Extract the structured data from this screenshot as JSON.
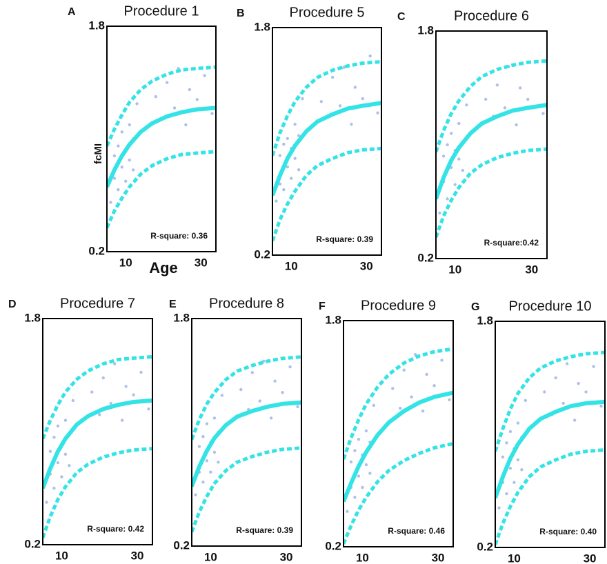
{
  "chart_data": [
    {
      "type": "scatter",
      "panel": "A",
      "title": "Procedure 1",
      "annotation": "R-square: 0.36",
      "ylabel": "fcMI",
      "xlabel": "Age",
      "xlim": [
        5,
        34
      ],
      "ylim": [
        0.2,
        1.8
      ],
      "xticks": [
        10,
        30
      ],
      "yticks": [
        0.2,
        1.8
      ],
      "point_color": "#adc0e8",
      "points": {
        "x": [
          6,
          7,
          7,
          8,
          8,
          9,
          9,
          10,
          10,
          11,
          11,
          12,
          12,
          13,
          18,
          20,
          21,
          23,
          24,
          26,
          27,
          29,
          31,
          33
        ],
        "y": [
          0.55,
          0.72,
          0.88,
          0.64,
          0.95,
          0.8,
          1.05,
          0.7,
          0.92,
          0.85,
          1.1,
          0.78,
          1.0,
          1.25,
          1.3,
          1.15,
          1.4,
          1.22,
          1.5,
          1.1,
          1.35,
          1.28,
          1.45,
          1.18
        ]
      },
      "curves": [
        {
          "style": "solid",
          "color": "#33e3e6",
          "x": [
            5,
            7,
            9,
            11,
            14,
            17,
            21,
            25,
            29,
            34
          ],
          "values": [
            0.66,
            0.78,
            0.88,
            0.96,
            1.05,
            1.11,
            1.16,
            1.19,
            1.21,
            1.22
          ]
        },
        {
          "style": "dashed",
          "color": "#33e3e6",
          "x": [
            5,
            7,
            9,
            11,
            14,
            17,
            21,
            25,
            29,
            34
          ],
          "values": [
            0.95,
            1.07,
            1.17,
            1.26,
            1.35,
            1.41,
            1.46,
            1.49,
            1.5,
            1.51
          ]
        },
        {
          "style": "dashed",
          "color": "#33e3e6",
          "x": [
            5,
            7,
            9,
            11,
            14,
            17,
            21,
            25,
            29,
            34
          ],
          "values": [
            0.37,
            0.49,
            0.58,
            0.66,
            0.75,
            0.81,
            0.86,
            0.89,
            0.9,
            0.91
          ]
        }
      ]
    },
    {
      "type": "scatter",
      "panel": "B",
      "title": "Procedure 5",
      "annotation": "R-square: 0.39",
      "xlim": [
        5,
        34
      ],
      "ylim": [
        0.2,
        1.8
      ],
      "xticks": [
        10,
        30
      ],
      "yticks": [
        0.2,
        1.8
      ],
      "point_color": "#adc0e8",
      "points": {
        "x": [
          6,
          7,
          7,
          8,
          8,
          9,
          9,
          10,
          10,
          11,
          11,
          12,
          12,
          13,
          18,
          20,
          21,
          23,
          24,
          26,
          27,
          29,
          31,
          33
        ],
        "y": [
          0.58,
          0.7,
          0.9,
          0.66,
          0.98,
          0.82,
          1.02,
          0.74,
          0.95,
          0.88,
          1.12,
          0.8,
          1.04,
          1.3,
          1.28,
          1.18,
          1.45,
          1.25,
          1.52,
          1.12,
          1.38,
          1.3,
          1.6,
          1.2
        ]
      },
      "curves": [
        {
          "style": "solid",
          "color": "#33e3e6",
          "x": [
            5,
            7,
            9,
            11,
            14,
            17,
            21,
            25,
            29,
            34
          ],
          "values": [
            0.62,
            0.76,
            0.88,
            0.97,
            1.07,
            1.14,
            1.19,
            1.23,
            1.25,
            1.27
          ]
        },
        {
          "style": "dashed",
          "color": "#33e3e6",
          "x": [
            5,
            7,
            9,
            11,
            14,
            17,
            21,
            25,
            29,
            34
          ],
          "values": [
            0.9,
            1.06,
            1.18,
            1.28,
            1.38,
            1.45,
            1.5,
            1.53,
            1.55,
            1.56
          ]
        },
        {
          "style": "dashed",
          "color": "#33e3e6",
          "x": [
            5,
            7,
            9,
            11,
            14,
            17,
            21,
            25,
            29,
            34
          ],
          "values": [
            0.3,
            0.45,
            0.56,
            0.65,
            0.76,
            0.83,
            0.88,
            0.92,
            0.94,
            0.95
          ]
        }
      ]
    },
    {
      "type": "scatter",
      "panel": "C",
      "title": "Procedure 6",
      "annotation": "R-square:0.42",
      "xlim": [
        5,
        34
      ],
      "ylim": [
        0.2,
        1.8
      ],
      "xticks": [
        10,
        30
      ],
      "yticks": [
        0.2,
        1.8
      ],
      "point_color": "#adc0e8",
      "points": {
        "x": [
          6,
          7,
          7,
          8,
          8,
          9,
          9,
          10,
          10,
          11,
          11,
          12,
          12,
          13,
          18,
          20,
          21,
          23,
          24,
          26,
          27,
          29,
          31,
          33
        ],
        "y": [
          0.52,
          0.74,
          0.92,
          0.62,
          1.0,
          0.84,
          1.08,
          0.72,
          0.96,
          0.9,
          1.15,
          0.82,
          1.02,
          1.28,
          1.32,
          1.2,
          1.42,
          1.26,
          1.55,
          1.14,
          1.4,
          1.32,
          1.58,
          1.22
        ]
      },
      "curves": [
        {
          "style": "solid",
          "color": "#33e3e6",
          "x": [
            5,
            7,
            9,
            11,
            14,
            17,
            21,
            25,
            29,
            34
          ],
          "values": [
            0.62,
            0.77,
            0.89,
            0.98,
            1.08,
            1.15,
            1.2,
            1.24,
            1.26,
            1.28
          ]
        },
        {
          "style": "dashed",
          "color": "#33e3e6",
          "x": [
            5,
            7,
            9,
            11,
            14,
            17,
            21,
            25,
            29,
            34
          ],
          "values": [
            0.95,
            1.1,
            1.22,
            1.31,
            1.41,
            1.48,
            1.53,
            1.56,
            1.58,
            1.59
          ]
        },
        {
          "style": "dashed",
          "color": "#33e3e6",
          "x": [
            5,
            7,
            9,
            11,
            14,
            17,
            21,
            25,
            29,
            34
          ],
          "values": [
            0.35,
            0.5,
            0.61,
            0.7,
            0.8,
            0.86,
            0.91,
            0.94,
            0.96,
            0.97
          ]
        }
      ]
    },
    {
      "type": "scatter",
      "panel": "D",
      "title": "Procedure 7",
      "annotation": "R-square: 0.42",
      "xlim": [
        5,
        34
      ],
      "ylim": [
        0.2,
        1.8
      ],
      "xticks": [
        10,
        30
      ],
      "yticks": [
        0.2,
        1.8
      ],
      "point_color": "#adc0e8",
      "points": {
        "x": [
          6,
          7,
          7,
          8,
          8,
          9,
          9,
          10,
          10,
          11,
          11,
          12,
          12,
          13,
          18,
          20,
          21,
          23,
          24,
          26,
          27,
          29,
          31,
          33
        ],
        "y": [
          0.5,
          0.7,
          0.86,
          0.6,
          0.96,
          0.78,
          1.04,
          0.68,
          0.9,
          0.84,
          1.08,
          0.76,
          0.98,
          1.22,
          1.28,
          1.12,
          1.38,
          1.2,
          1.48,
          1.08,
          1.32,
          1.26,
          1.42,
          1.16
        ]
      },
      "curves": [
        {
          "style": "solid",
          "color": "#33e3e6",
          "x": [
            5,
            7,
            9,
            11,
            14,
            17,
            21,
            25,
            29,
            34
          ],
          "values": [
            0.6,
            0.74,
            0.86,
            0.95,
            1.05,
            1.11,
            1.16,
            1.19,
            1.21,
            1.22
          ]
        },
        {
          "style": "dashed",
          "color": "#33e3e6",
          "x": [
            5,
            7,
            9,
            11,
            14,
            17,
            21,
            25,
            29,
            34
          ],
          "values": [
            0.95,
            1.08,
            1.19,
            1.28,
            1.37,
            1.43,
            1.48,
            1.51,
            1.52,
            1.53
          ]
        },
        {
          "style": "dashed",
          "color": "#33e3e6",
          "x": [
            5,
            7,
            9,
            11,
            14,
            17,
            21,
            25,
            29,
            34
          ],
          "values": [
            0.25,
            0.4,
            0.52,
            0.61,
            0.71,
            0.77,
            0.82,
            0.85,
            0.87,
            0.88
          ]
        }
      ]
    },
    {
      "type": "scatter",
      "panel": "E",
      "title": "Procedure 8",
      "annotation": "R-square: 0.39",
      "xlim": [
        5,
        34
      ],
      "ylim": [
        0.2,
        1.8
      ],
      "xticks": [
        10,
        30
      ],
      "yticks": [
        0.2,
        1.8
      ],
      "point_color": "#adc0e8",
      "points": {
        "x": [
          6,
          7,
          7,
          8,
          8,
          9,
          9,
          10,
          10,
          11,
          11,
          12,
          12,
          13,
          18,
          20,
          21,
          23,
          24,
          26,
          27,
          29,
          31,
          33
        ],
        "y": [
          0.56,
          0.72,
          0.9,
          0.65,
          0.97,
          0.8,
          1.06,
          0.72,
          0.93,
          0.86,
          1.1,
          0.79,
          1.0,
          1.26,
          1.3,
          1.16,
          1.42,
          1.22,
          1.5,
          1.1,
          1.36,
          1.28,
          1.46,
          1.18
        ]
      },
      "curves": [
        {
          "style": "solid",
          "color": "#33e3e6",
          "x": [
            5,
            7,
            9,
            11,
            14,
            17,
            21,
            25,
            29,
            34
          ],
          "values": [
            0.62,
            0.76,
            0.87,
            0.96,
            1.05,
            1.11,
            1.15,
            1.18,
            1.2,
            1.21
          ]
        },
        {
          "style": "dashed",
          "color": "#33e3e6",
          "x": [
            5,
            7,
            9,
            11,
            14,
            17,
            21,
            25,
            29,
            34
          ],
          "values": [
            0.95,
            1.09,
            1.2,
            1.28,
            1.37,
            1.43,
            1.47,
            1.5,
            1.52,
            1.53
          ]
        },
        {
          "style": "dashed",
          "color": "#33e3e6",
          "x": [
            5,
            7,
            9,
            11,
            14,
            17,
            21,
            25,
            29,
            34
          ],
          "values": [
            0.3,
            0.44,
            0.55,
            0.64,
            0.73,
            0.79,
            0.83,
            0.86,
            0.88,
            0.89
          ]
        }
      ]
    },
    {
      "type": "scatter",
      "panel": "F",
      "title": "Procedure 9",
      "annotation": "R-square: 0.46",
      "xlim": [
        5,
        34
      ],
      "ylim": [
        0.2,
        1.8
      ],
      "xticks": [
        10,
        30
      ],
      "yticks": [
        0.2,
        1.8
      ],
      "point_color": "#adc0e8",
      "points": {
        "x": [
          6,
          7,
          7,
          8,
          8,
          9,
          9,
          10,
          10,
          11,
          11,
          12,
          12,
          13,
          18,
          20,
          21,
          23,
          24,
          26,
          27,
          29,
          31,
          33
        ],
        "y": [
          0.45,
          0.62,
          0.8,
          0.55,
          0.88,
          0.7,
          0.96,
          0.62,
          0.85,
          0.78,
          1.02,
          0.72,
          0.94,
          1.2,
          1.32,
          1.18,
          1.45,
          1.26,
          1.56,
          1.16,
          1.42,
          1.34,
          1.52,
          1.24
        ]
      },
      "curves": [
        {
          "style": "solid",
          "color": "#33e3e6",
          "x": [
            5,
            7,
            9,
            11,
            14,
            17,
            21,
            25,
            29,
            34
          ],
          "values": [
            0.52,
            0.65,
            0.77,
            0.87,
            0.99,
            1.08,
            1.16,
            1.22,
            1.26,
            1.29
          ]
        },
        {
          "style": "dashed",
          "color": "#33e3e6",
          "x": [
            5,
            7,
            9,
            11,
            14,
            17,
            21,
            25,
            29,
            34
          ],
          "values": [
            0.82,
            0.97,
            1.1,
            1.21,
            1.33,
            1.42,
            1.5,
            1.55,
            1.58,
            1.6
          ]
        },
        {
          "style": "dashed",
          "color": "#33e3e6",
          "x": [
            5,
            7,
            9,
            11,
            14,
            17,
            21,
            25,
            29,
            34
          ],
          "values": [
            0.22,
            0.35,
            0.46,
            0.55,
            0.66,
            0.74,
            0.81,
            0.86,
            0.9,
            0.93
          ]
        }
      ]
    },
    {
      "type": "scatter",
      "panel": "G",
      "title": "Procedure 10",
      "annotation": "R-square: 0.40",
      "xlim": [
        5,
        34
      ],
      "ylim": [
        0.2,
        1.8
      ],
      "xticks": [
        10,
        30
      ],
      "yticks": [
        0.2,
        1.8
      ],
      "point_color": "#adc0e8",
      "points": {
        "x": [
          6,
          7,
          7,
          8,
          8,
          9,
          9,
          10,
          10,
          11,
          11,
          12,
          12,
          13,
          18,
          20,
          21,
          23,
          24,
          26,
          27,
          29,
          31,
          33
        ],
        "y": [
          0.48,
          0.66,
          0.84,
          0.58,
          0.94,
          0.76,
          1.02,
          0.66,
          0.9,
          0.82,
          1.08,
          0.75,
          0.98,
          1.24,
          1.3,
          1.14,
          1.4,
          1.22,
          1.5,
          1.1,
          1.36,
          1.3,
          1.48,
          1.2
        ]
      },
      "curves": [
        {
          "style": "solid",
          "color": "#33e3e6",
          "x": [
            5,
            7,
            9,
            11,
            14,
            17,
            21,
            25,
            29,
            34
          ],
          "values": [
            0.55,
            0.7,
            0.83,
            0.93,
            1.04,
            1.11,
            1.16,
            1.2,
            1.22,
            1.23
          ]
        },
        {
          "style": "dashed",
          "color": "#33e3e6",
          "x": [
            5,
            7,
            9,
            11,
            14,
            17,
            21,
            25,
            29,
            34
          ],
          "values": [
            0.88,
            1.04,
            1.18,
            1.29,
            1.4,
            1.47,
            1.52,
            1.55,
            1.57,
            1.58
          ]
        },
        {
          "style": "dashed",
          "color": "#33e3e6",
          "x": [
            5,
            7,
            9,
            11,
            14,
            17,
            21,
            25,
            29,
            34
          ],
          "values": [
            0.22,
            0.37,
            0.49,
            0.59,
            0.7,
            0.77,
            0.82,
            0.86,
            0.88,
            0.89
          ]
        }
      ]
    }
  ]
}
